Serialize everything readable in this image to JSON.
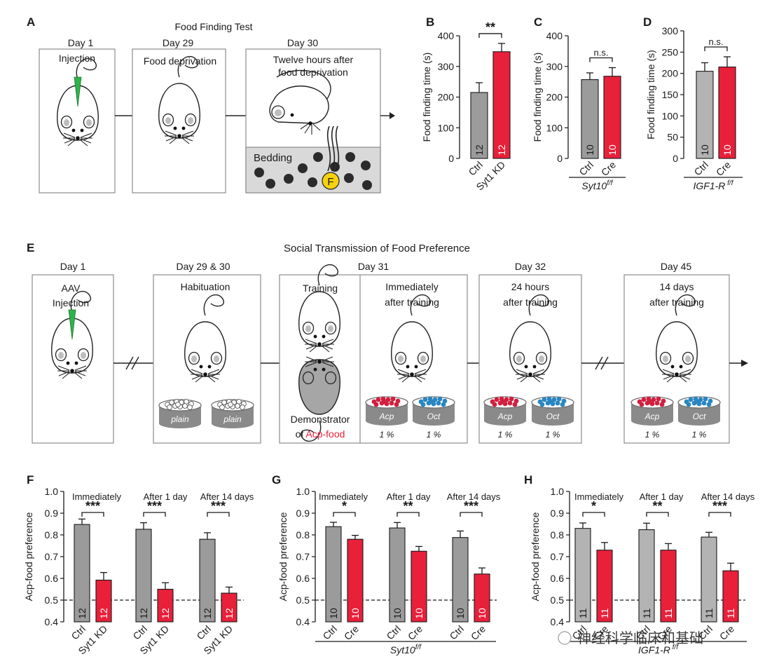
{
  "colors": {
    "ctrl": "#9b9b9b",
    "ctrl_light": "#b3b3b3",
    "treat": "#e8203a",
    "acp": "#d02040",
    "oct": "#2a86c1",
    "food_text": "#e8203a",
    "dish": "#8a8a8a",
    "mouse_fill": "#ffffff",
    "demo_fill": "#a6a6a6"
  },
  "panelA": {
    "label": "A",
    "title": "Food Finding Test",
    "d1": {
      "day": "Day 1",
      "text": "Injection"
    },
    "d29": {
      "day": "Day 29",
      "text": "Food deprivation"
    },
    "d30": {
      "day": "Day 30",
      "line1": "Twelve hours after",
      "line2": "food deprivation",
      "bedding": "Bedding",
      "food": "F"
    }
  },
  "panelE": {
    "label": "E",
    "title": "Social Transmission of Food Preference",
    "d1": {
      "day": "Day 1",
      "line1": "AAV",
      "line2": "Injection"
    },
    "d29": {
      "day": "Day 29 & 30",
      "text": "Habituation",
      "dish1": "plain",
      "dish2": "plain"
    },
    "d31": {
      "day": "Day 31",
      "training": "Training",
      "immediately1": "Immediately",
      "immediately2": "after training",
      "demo1": "Demonstrator",
      "demo2_of": "of ",
      "demo2_food": "Acp-food"
    },
    "d32": {
      "day": "Day 32",
      "line1": "24 hours",
      "line2": "after training"
    },
    "d45": {
      "day": "Day 45",
      "line1": "14 days",
      "line2": "after training"
    },
    "dishes": {
      "acp": "Acp",
      "oct": "Oct",
      "pct1": "1 %",
      "pct2": "1 %"
    }
  },
  "watermark": "神经科学临床和基础",
  "chart_data": [
    {
      "id": "B",
      "type": "bar",
      "ylabel": "Food finding time (s)",
      "ylim": [
        0,
        400
      ],
      "ticks": [
        0,
        100,
        200,
        300,
        400
      ],
      "categories": [
        "Ctrl",
        "Syt1 KD"
      ],
      "values": [
        215,
        348
      ],
      "errors": [
        32,
        27
      ],
      "n": [
        "12",
        "12"
      ],
      "sig": "**",
      "genotype": ""
    },
    {
      "id": "C",
      "type": "bar",
      "ylabel": "Food finding time (s)",
      "ylim": [
        0,
        400
      ],
      "ticks": [
        0,
        100,
        200,
        300,
        400
      ],
      "categories": [
        "Ctrl",
        "Cre"
      ],
      "values": [
        257,
        268
      ],
      "errors": [
        22,
        28
      ],
      "n": [
        "10",
        "10"
      ],
      "sig": "n.s.",
      "genotype": "Syt10",
      "genotype_sup": "f/f"
    },
    {
      "id": "D",
      "type": "bar",
      "ylabel": "Food finding time (s)",
      "ylim": [
        0,
        300
      ],
      "ticks": [
        0,
        50,
        100,
        150,
        200,
        250,
        300
      ],
      "categories": [
        "Ctrl",
        "Cre"
      ],
      "values": [
        205,
        215
      ],
      "errors": [
        20,
        24
      ],
      "n": [
        "10",
        "10"
      ],
      "sig": "n.s.",
      "genotype": "IGF1-R",
      "genotype_sup": " f/f"
    },
    {
      "id": "F",
      "type": "bar",
      "ylabel": "Acp-food preference",
      "ylim": [
        0.4,
        1.0
      ],
      "ticks": [
        0.4,
        0.5,
        0.6,
        0.7,
        0.8,
        0.9,
        1.0
      ],
      "baseline": 0.5,
      "categories": [
        "Ctrl",
        "Syt1 KD"
      ],
      "genotype": "",
      "groups": [
        {
          "label": "Immediately",
          "values": [
            0.848,
            0.592
          ],
          "errors": [
            0.025,
            0.035
          ],
          "sig": "***",
          "n": [
            "12",
            "12"
          ]
        },
        {
          "label": "After 1 day",
          "values": [
            0.826,
            0.55
          ],
          "errors": [
            0.03,
            0.03
          ],
          "sig": "***",
          "n": [
            "12",
            "12"
          ]
        },
        {
          "label": "After 14 days",
          "values": [
            0.78,
            0.532
          ],
          "errors": [
            0.03,
            0.028
          ],
          "sig": "***",
          "n": [
            "12",
            "12"
          ]
        }
      ]
    },
    {
      "id": "G",
      "type": "bar",
      "ylabel": "Acp-food preference",
      "ylim": [
        0.4,
        1.0
      ],
      "ticks": [
        0.4,
        0.5,
        0.6,
        0.7,
        0.8,
        0.9,
        1.0
      ],
      "baseline": 0.5,
      "categories": [
        "Ctrl",
        "Cre"
      ],
      "genotype": "Syt10",
      "genotype_sup": "f/f",
      "groups": [
        {
          "label": "Immediately",
          "values": [
            0.838,
            0.78
          ],
          "errors": [
            0.02,
            0.018
          ],
          "sig": "*",
          "n": [
            "10",
            "10"
          ]
        },
        {
          "label": "After 1 day",
          "values": [
            0.832,
            0.725
          ],
          "errors": [
            0.025,
            0.022
          ],
          "sig": "**",
          "n": [
            "10",
            "10"
          ]
        },
        {
          "label": "After 14 days",
          "values": [
            0.788,
            0.62
          ],
          "errors": [
            0.03,
            0.028
          ],
          "sig": "***",
          "n": [
            "10",
            "10"
          ]
        }
      ]
    },
    {
      "id": "H",
      "type": "bar",
      "ylabel": "Acp-food preference",
      "ylim": [
        0.4,
        1.0
      ],
      "ticks": [
        0.4,
        0.5,
        0.6,
        0.7,
        0.8,
        0.9,
        1.0
      ],
      "baseline": 0.5,
      "categories": [
        "Ctrl",
        "Cre"
      ],
      "genotype": "IGF1-R",
      "genotype_sup": " f/f",
      "groups": [
        {
          "label": "Immediately",
          "values": [
            0.83,
            0.73
          ],
          "errors": [
            0.025,
            0.035
          ],
          "sig": "*",
          "n": [
            "11",
            "11"
          ]
        },
        {
          "label": "After 1 day",
          "values": [
            0.824,
            0.73
          ],
          "errors": [
            0.03,
            0.03
          ],
          "sig": "**",
          "n": [
            "11",
            "11"
          ]
        },
        {
          "label": "After 14 days",
          "values": [
            0.79,
            0.635
          ],
          "errors": [
            0.022,
            0.035
          ],
          "sig": "***",
          "n": [
            "11",
            "11"
          ]
        }
      ]
    }
  ]
}
